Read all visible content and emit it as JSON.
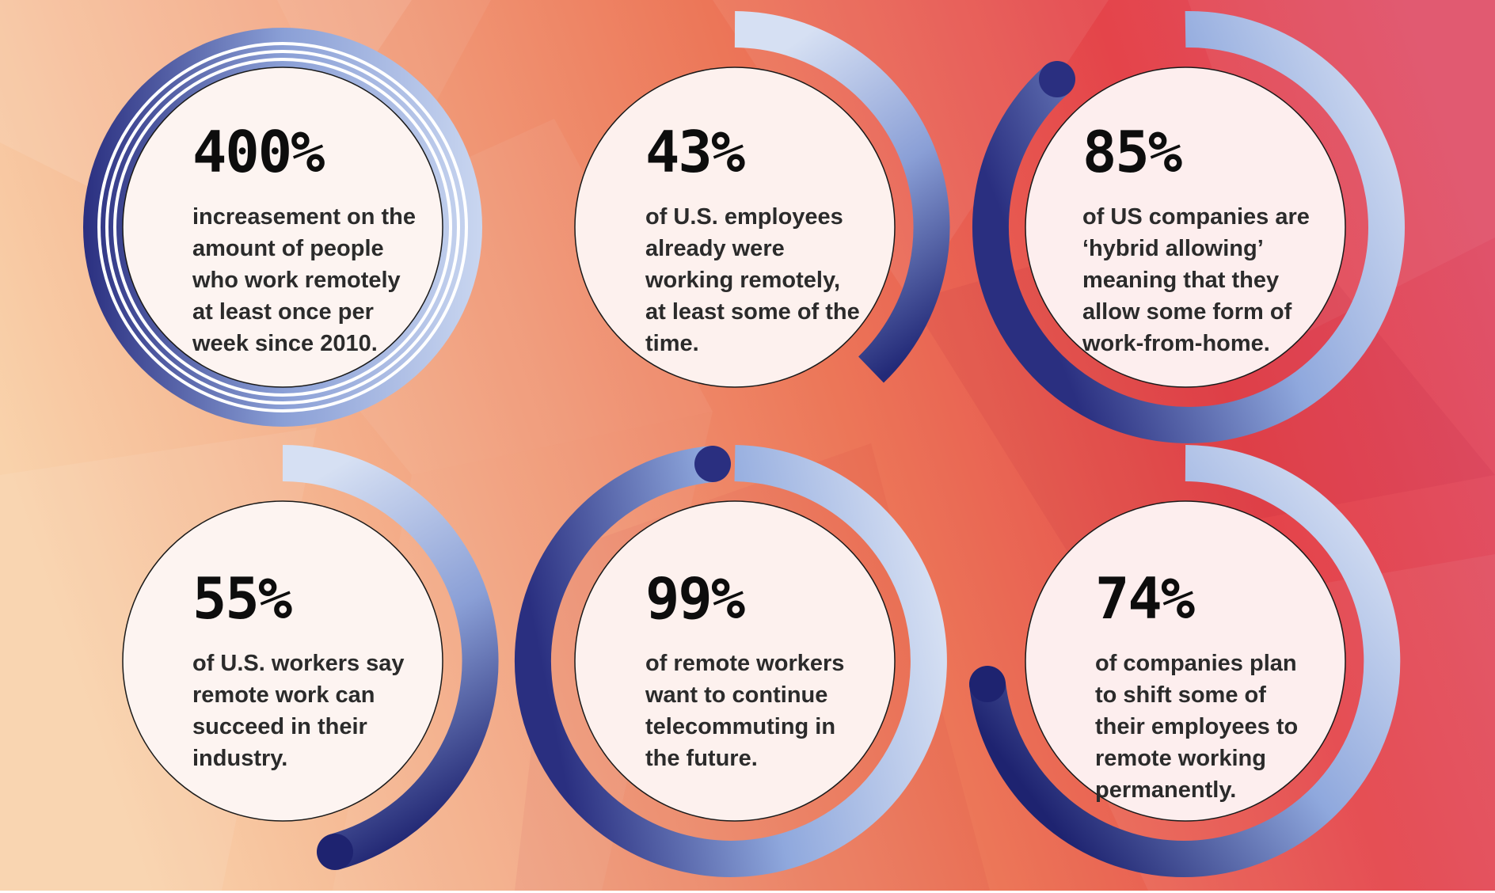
{
  "colors": {
    "background_stops": [
      "#f8cfa7",
      "#f3a482",
      "#ec6f55",
      "#e23c45",
      "#e0607a"
    ],
    "ring_dark": "#2a2f80",
    "ring_light": "#d6e0f3",
    "ring_mid": "#8fa8dd",
    "disc_fill": "#fdf4f1",
    "text": "#2b2b2b"
  },
  "stats": [
    {
      "value": "400%",
      "caption": [
        "increasement on the",
        "amount of people",
        "who work remotely",
        "at least once per",
        "week since 2010."
      ]
    },
    {
      "value": "43%",
      "caption": [
        "of U.S. employees",
        "already were",
        "working remotely,",
        "at least some of the",
        "time."
      ]
    },
    {
      "value": "85%",
      "caption": [
        "of US companies are",
        "‘hybrid allowing’",
        "meaning that they",
        "allow some form of",
        "work-from-home."
      ]
    },
    {
      "value": "55%",
      "caption": [
        "of U.S. workers say",
        "remote work can",
        "succeed in their",
        "industry."
      ]
    },
    {
      "value": "99%",
      "caption": [
        "of remote workers",
        "want to continue",
        "telecommuting in",
        "the future."
      ]
    },
    {
      "value": "74%",
      "caption": [
        "of companies plan",
        "to shift some of",
        "their employees to",
        "remote working",
        "permanently."
      ]
    }
  ]
}
